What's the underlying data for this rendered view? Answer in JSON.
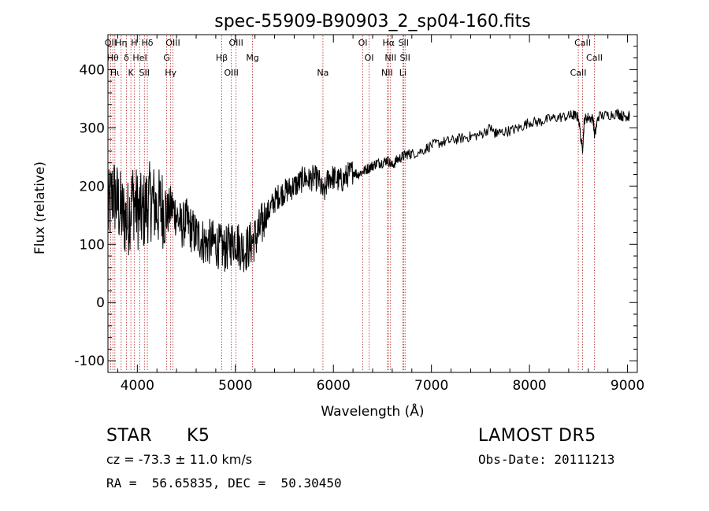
{
  "chart_data": {
    "type": "line",
    "title": "spec-55909-B90903_2_sp04-160.fits",
    "xlabel": "Wavelength (Å)",
    "ylabel": "Flux (relative)",
    "xlim": [
      3700,
      9100
    ],
    "ylim": [
      -120,
      460
    ],
    "xticks": [
      4000,
      5000,
      6000,
      7000,
      8000,
      9000
    ],
    "yticks": [
      -100,
      0,
      100,
      200,
      300,
      400
    ],
    "line_color": "#000000",
    "marker_color": "#b22222",
    "grid": false,
    "series": [
      {
        "x": [
          3700,
          3750,
          3800,
          3850,
          3900,
          3950,
          4000,
          4050,
          4100,
          4150,
          4200,
          4250,
          4300,
          4350,
          4400,
          4450,
          4500,
          4550,
          4600,
          4650,
          4700,
          4750,
          4800,
          4850,
          4900,
          4950,
          5000,
          5050,
          5100,
          5150,
          5200,
          5250,
          5300,
          5350,
          5400,
          5450,
          5500,
          5550,
          5600,
          5650,
          5700,
          5750,
          5800,
          5850,
          5900,
          5950,
          6000,
          6050,
          6100,
          6150,
          6200,
          6250,
          6300,
          6350,
          6400,
          6450,
          6500,
          6550,
          6600,
          6650,
          6700,
          6750,
          6800,
          6900,
          7000,
          7100,
          7200,
          7300,
          7400,
          7500,
          7600,
          7650,
          7700,
          7800,
          7900,
          8000,
          8100,
          8200,
          8300,
          8400,
          8450,
          8500,
          8540,
          8560,
          8600,
          8650,
          8665,
          8700,
          8800,
          8900,
          8950,
          9000,
          9020
        ],
        "y": [
          150,
          190,
          170,
          150,
          140,
          180,
          160,
          150,
          170,
          175,
          160,
          165,
          150,
          165,
          150,
          130,
          140,
          125,
          115,
          110,
          100,
          105,
          100,
          95,
          90,
          100,
          110,
          95,
          90,
          100,
          110,
          125,
          145,
          160,
          175,
          185,
          190,
          195,
          200,
          205,
          215,
          210,
          215,
          210,
          185,
          215,
          215,
          210,
          210,
          220,
          225,
          220,
          225,
          230,
          235,
          240,
          240,
          245,
          235,
          245,
          250,
          255,
          255,
          260,
          270,
          275,
          278,
          282,
          285,
          288,
          300,
          290,
          292,
          295,
          300,
          310,
          310,
          315,
          318,
          320,
          322,
          318,
          260,
          315,
          318,
          315,
          285,
          320,
          322,
          325,
          320,
          320,
          320
        ]
      }
    ],
    "lines": [
      {
        "x": 3727,
        "label": "OII"
      },
      {
        "x": 3750,
        "label": "Hθ"
      },
      {
        "x": 3771,
        "label": "Hι"
      },
      {
        "x": 3835,
        "label": "Hη"
      },
      {
        "x": 3889,
        "label": "δ"
      },
      {
        "x": 3934,
        "label": "K"
      },
      {
        "x": 3968,
        "label": "H"
      },
      {
        "x": 4026,
        "label": "HeI"
      },
      {
        "x": 4072,
        "label": "SII"
      },
      {
        "x": 4102,
        "label": "Hδ"
      },
      {
        "x": 4300,
        "label": "G"
      },
      {
        "x": 4340,
        "label": "Hγ"
      },
      {
        "x": 4363,
        "label": "OIII"
      },
      {
        "x": 4861,
        "label": "Hβ"
      },
      {
        "x": 4959,
        "label": "OIII"
      },
      {
        "x": 5007,
        "label": "OIII"
      },
      {
        "x": 5175,
        "label": "Mg"
      },
      {
        "x": 5893,
        "label": "Na"
      },
      {
        "x": 6300,
        "label": "OI"
      },
      {
        "x": 6364,
        "label": "OI"
      },
      {
        "x": 6548,
        "label": "NII"
      },
      {
        "x": 6563,
        "label": "Hα"
      },
      {
        "x": 6583,
        "label": "NII"
      },
      {
        "x": 6708,
        "label": "Li"
      },
      {
        "x": 6716,
        "label": "SII"
      },
      {
        "x": 6731,
        "label": "SII"
      },
      {
        "x": 8498,
        "label": "CaII"
      },
      {
        "x": 8542,
        "label": "CaII"
      },
      {
        "x": 8662,
        "label": "CaII"
      }
    ]
  },
  "info": {
    "class": "STAR",
    "subclass": "K5",
    "survey": "LAMOST DR5",
    "cz": "cz = -73.3 ± 11.0 km/s",
    "obs_date": "Obs-Date: 20111213",
    "coords": "RA =  56.65835, DEC =  50.30450"
  }
}
